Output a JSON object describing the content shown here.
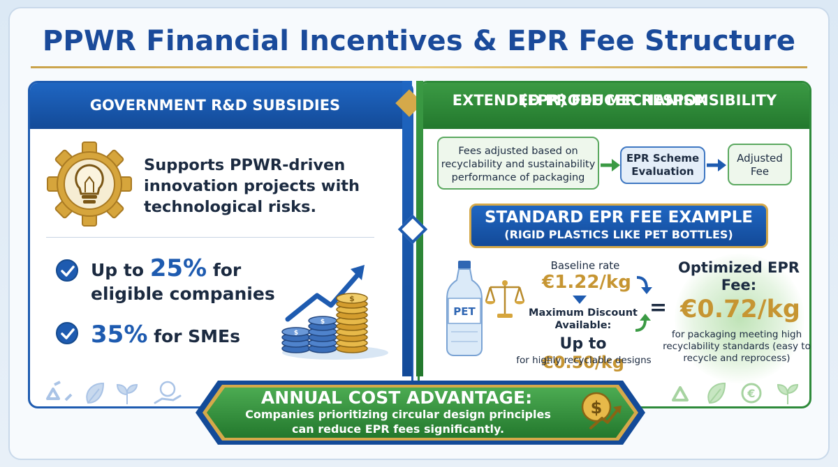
{
  "title": "PPWR Financial Incentives & EPR Fee Structure",
  "left": {
    "header": "GOVERNMENT R&D SUBSIDIES",
    "description": "Supports PPWR-driven innovation projects with technological risks.",
    "bullets": [
      {
        "prefix": "Up to ",
        "value": "25%",
        "suffix": " for eligible companies"
      },
      {
        "value": "35%",
        "suffix": " for SMEs"
      }
    ],
    "coin_symbol": "$"
  },
  "right": {
    "header_line1": "EXTENDED PRODUCER RESPONSIBILITY",
    "header_line2": "(EPR) FEE MECHANISM",
    "flow": [
      "Fees adjusted based on recyclability and sustainability performance of packaging",
      "EPR Scheme Evaluation",
      "Adjusted Fee"
    ],
    "example_title": "STANDARD EPR FEE EXAMPLE",
    "example_subtitle": "(RIGID PLASTICS LIKE PET BOTTLES)",
    "bottle_label": "PET",
    "baseline_label": "Baseline rate",
    "baseline_value": "€1.22/kg",
    "max_discount_label": "Maximum Discount Available:",
    "discount_prefix": "Up to ",
    "discount_value": "€0.50/kg",
    "discount_note": "for highly recyclable designs",
    "equals": "=",
    "optimized_label": "Optimized EPR Fee:",
    "optimized_value": "€0.72/kg",
    "optimized_note": "for packaging meeting high recyclability standards (easy to recycle and reprocess)",
    "euro_icon_symbol": "€"
  },
  "banner": {
    "title": "ANNUAL COST ADVANTAGE:",
    "text": "Companies prioritizing circular design principles can reduce EPR fees significantly.",
    "coin_symbol": "$"
  },
  "colors": {
    "blue": "#1e5bb0",
    "green": "#2e8a3a",
    "gold": "#c69532"
  }
}
